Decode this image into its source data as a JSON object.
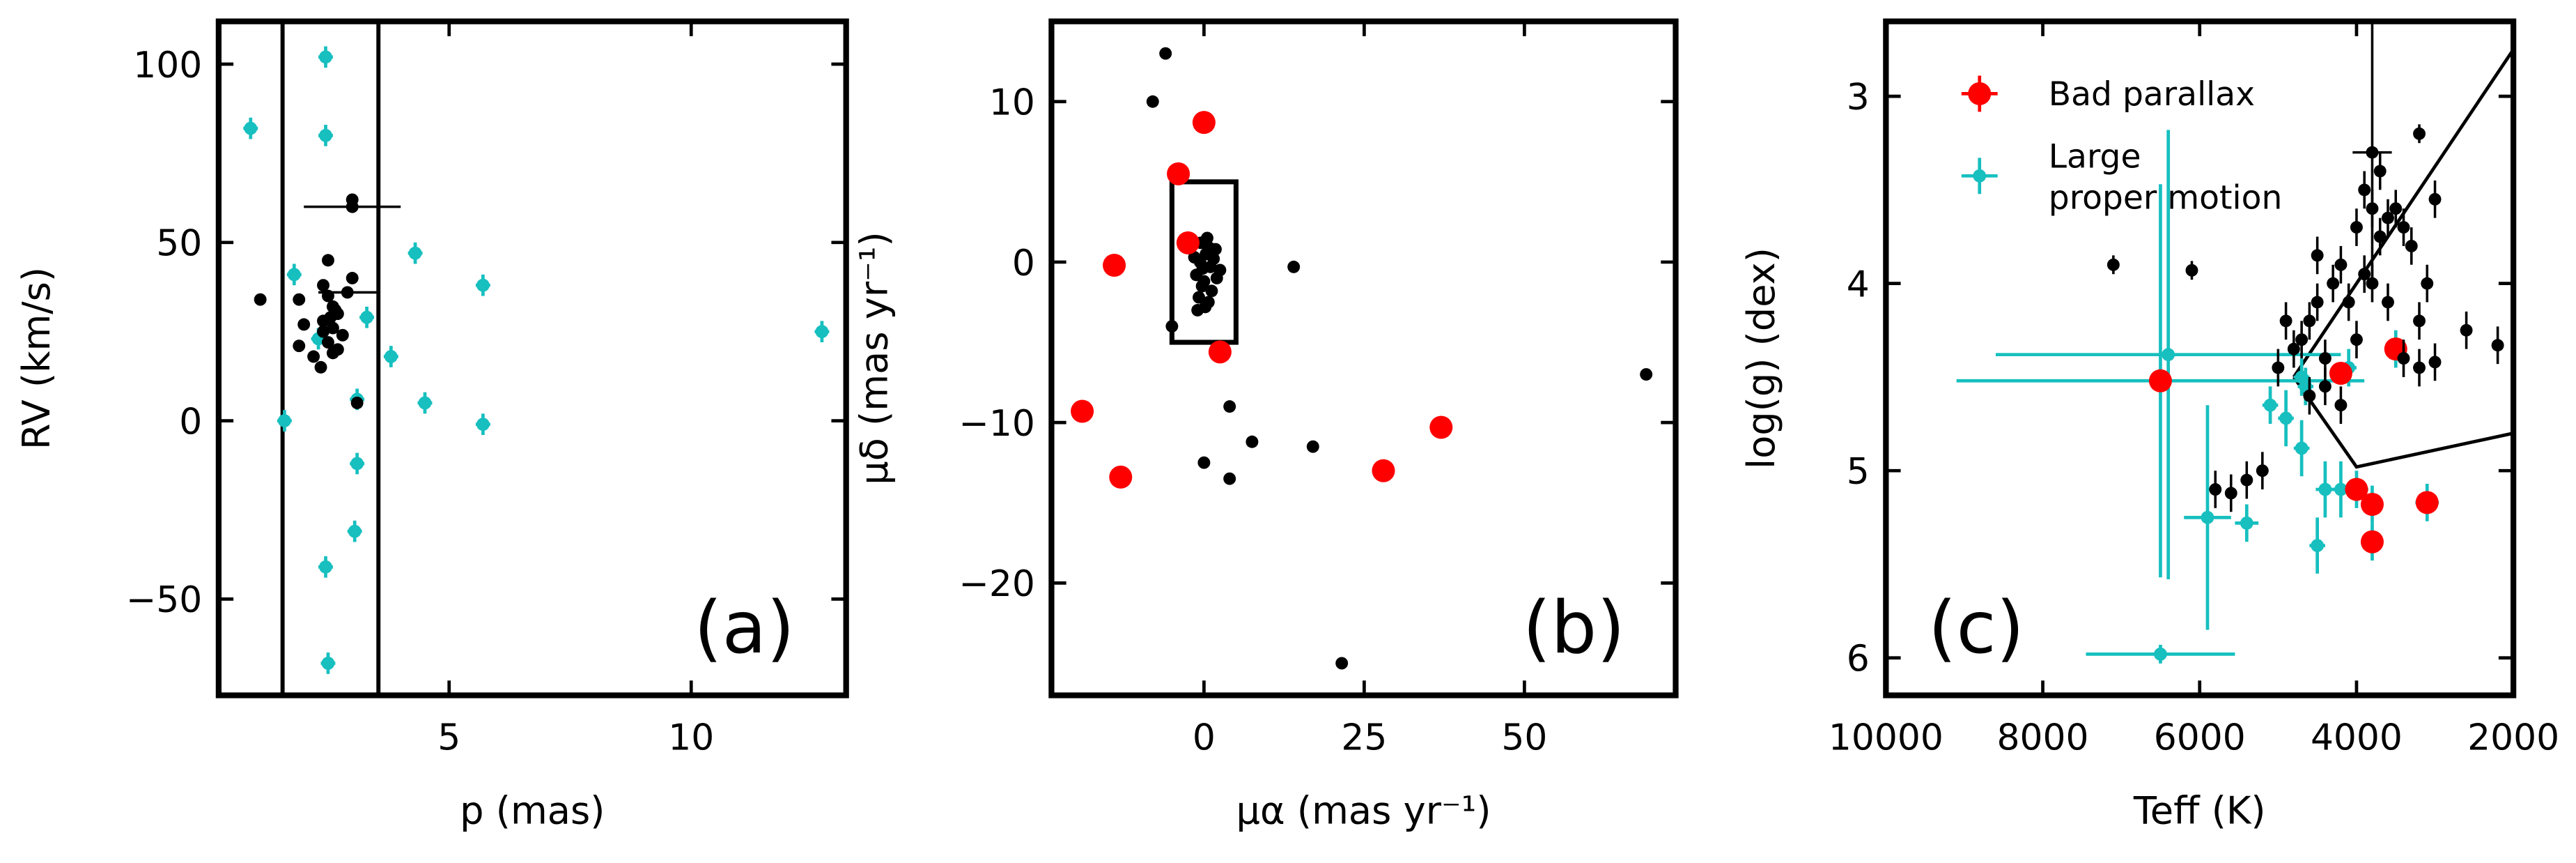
{
  "chart_data": [
    {
      "type": "scatter",
      "xlabel": "p (mas)",
      "ylabel": "RV (km/s)",
      "panel_label": "(a)",
      "xlim": [
        0.24,
        13.2
      ],
      "ylim": [
        -77,
        112
      ],
      "xticks": [
        5,
        10
      ],
      "yticks": [
        {
          "value": -50,
          "label": "−50"
        },
        0,
        50,
        100
      ],
      "vlines": [
        1.56,
        3.54
      ],
      "series": [
        {
          "color": "#17bfbf",
          "marker": "cross",
          "x": [
            0.9,
            2.45,
            2.45,
            1.8,
            1.6,
            2.3,
            3.3,
            3.1,
            3.1,
            3.05,
            2.45,
            2.5,
            3.8,
            4.3,
            4.5,
            5.7,
            5.7,
            12.7
          ],
          "y": [
            82,
            102,
            80,
            41,
            0,
            23,
            29,
            6,
            -12,
            -31,
            -41,
            -68,
            18,
            47,
            5,
            38,
            -1,
            25
          ],
          "xerr": [
            0.15,
            0.15,
            0.15,
            0.15,
            0.15,
            0.15,
            0.15,
            0.15,
            0.15,
            0.15,
            0.15,
            0.15,
            0.15,
            0.15,
            0.15,
            0.15,
            0.15,
            0.15
          ],
          "yerr": [
            3,
            3,
            3,
            3,
            3,
            3,
            3,
            3,
            3,
            3,
            3,
            3,
            3,
            3,
            3,
            3,
            3,
            3
          ]
        },
        {
          "color": "#000000",
          "marker": "dot",
          "x": [
            1.1,
            3.0,
            3.0,
            3.1,
            1.9,
            2.0,
            1.9,
            2.2,
            2.5,
            2.4,
            2.5,
            2.6,
            2.7,
            2.4,
            2.6,
            2.8,
            2.5,
            2.7,
            2.6,
            2.4,
            2.9,
            2.55,
            2.65,
            2.35,
            3.0
          ],
          "y": [
            34,
            62,
            60,
            5,
            34,
            27,
            21,
            18,
            45,
            38,
            35,
            32,
            30,
            28,
            26,
            24,
            22,
            20,
            19,
            25,
            36,
            29,
            31,
            15,
            40
          ],
          "xerr": [
            null,
            null,
            1.0,
            null,
            null,
            null,
            null,
            null,
            null,
            null,
            null,
            null,
            null,
            null,
            null,
            null,
            null,
            null,
            null,
            null,
            0.6,
            null,
            null,
            null,
            null
          ]
        }
      ]
    },
    {
      "type": "scatter",
      "xlabel": "μα (mas yr⁻¹)",
      "ylabel": "μδ (mas yr⁻¹)",
      "panel_label": "(b)",
      "xlim": [
        -23.8,
        73.6
      ],
      "ylim": [
        -27,
        15
      ],
      "xticks": [
        0,
        25,
        50
      ],
      "yticks": [
        {
          "value": -20,
          "label": "−20"
        },
        {
          "value": -10,
          "label": "−10"
        },
        0,
        10
      ],
      "box": {
        "x": [
          -5,
          5
        ],
        "y": [
          -5,
          5
        ]
      },
      "series": [
        {
          "color": "#000000",
          "marker": "dot",
          "x": [
            -0.5,
            0.3,
            1.0,
            -1.2,
            0.8,
            -0.3,
            1.5,
            -0.8,
            0.2,
            2.0,
            -1.5,
            0.5,
            1.2,
            -0.2,
            0.7,
            -1.0,
            1.8,
            0.0,
            -0.6,
            2.5,
            -6,
            -8,
            14,
            4,
            7.5,
            17,
            0,
            4,
            69,
            21.5,
            -5
          ],
          "y": [
            1.2,
            0.5,
            -0.3,
            -0.8,
            0.9,
            -1.5,
            0.2,
            -2.2,
            -2.8,
            -1.0,
            0.3,
            1.5,
            -1.8,
            -0.4,
            -2.5,
            -3.0,
            0.8,
            -1.2,
            0.0,
            -0.5,
            13,
            10,
            -0.3,
            -9,
            -11.2,
            -11.5,
            -12.5,
            -13.5,
            -7,
            -25,
            -4
          ]
        },
        {
          "color": "#ff0000",
          "marker": "big",
          "x": [
            -4,
            0,
            -2.5,
            -14,
            -19,
            -13,
            2.5,
            28,
            37
          ],
          "y": [
            5.5,
            8.7,
            1.2,
            -0.2,
            -9.3,
            -13.4,
            -5.6,
            -13,
            -10.3
          ]
        }
      ]
    },
    {
      "type": "scatter",
      "xlabel": "Teff (K)",
      "ylabel": "log(g) (dex)",
      "panel_label": "(c)",
      "xlim": [
        10000,
        2000
      ],
      "ylim": [
        6.2,
        2.6
      ],
      "xticks": [
        10000,
        8000,
        6000,
        4000,
        2000
      ],
      "yticks": [
        3,
        4,
        5,
        6
      ],
      "legend": "upper left",
      "lines": [
        {
          "x": [
            4800,
            2000
          ],
          "y": [
            4.5,
            2.75
          ]
        },
        {
          "x": [
            4800,
            4000,
            2000
          ],
          "y": [
            4.5,
            4.98,
            4.8
          ]
        }
      ],
      "series": [
        {
          "name": [
            "Large",
            "proper motion"
          ],
          "color": "#17bfbf",
          "marker": "cross",
          "x": [
            6500,
            6400,
            6500,
            5900,
            5400,
            5100,
            4900,
            4700,
            4650,
            4500,
            4400,
            4200,
            4700,
            4100,
            3500,
            3100,
            3800,
            3800,
            4000
          ],
          "y": [
            4.52,
            4.38,
            5.98,
            5.25,
            5.28,
            4.65,
            4.72,
            4.88,
            4.55,
            5.4,
            5.1,
            5.1,
            4.5,
            4.45,
            4.35,
            5.17,
            5.18,
            5.38,
            5.1
          ],
          "xerr": [
            2600,
            2200,
            950,
            300,
            150,
            100,
            100,
            100,
            100,
            100,
            120,
            150,
            100,
            100,
            120,
            150,
            120,
            120,
            150
          ],
          "yerr": [
            1.05,
            1.2,
            0.05,
            0.6,
            0.1,
            0.1,
            0.15,
            0.15,
            0.1,
            0.15,
            0.15,
            0.15,
            0.1,
            0.1,
            0.1,
            0.1,
            0.1,
            0.1,
            0.1
          ]
        },
        {
          "name": [
            "Bad parallax"
          ],
          "color": "#ff0000",
          "marker": "big",
          "x": [
            6500,
            4200,
            4000,
            3800,
            3800,
            3500,
            3100
          ],
          "y": [
            4.52,
            4.48,
            5.1,
            5.18,
            5.38,
            4.35,
            5.17
          ]
        },
        {
          "color": "#000000",
          "marker": "dot",
          "x": [
            7100,
            6100,
            3800,
            3200,
            5800,
            5600,
            5400,
            5200,
            5000,
            4800,
            4600,
            4700,
            4500,
            4400,
            4300,
            4200,
            4100,
            4000,
            3900,
            3800,
            3700,
            3600,
            3500,
            3400,
            3300,
            3200,
            3100,
            3000,
            4600,
            4400,
            4200,
            4000,
            3800,
            3600,
            3400,
            3200,
            3000,
            2200,
            2600,
            4900,
            4500,
            3700,
            3900
          ],
          "y": [
            3.9,
            3.93,
            3.3,
            3.2,
            5.1,
            5.12,
            5.05,
            5.0,
            4.45,
            4.35,
            4.2,
            4.3,
            4.1,
            4.4,
            4.0,
            3.9,
            4.1,
            3.7,
            3.5,
            3.6,
            3.4,
            3.65,
            3.6,
            3.7,
            3.8,
            4.2,
            4.0,
            3.55,
            4.6,
            4.55,
            4.65,
            4.3,
            4.0,
            4.1,
            4.4,
            4.45,
            4.42,
            4.33,
            4.25,
            4.2,
            3.85,
            3.75,
            3.95
          ],
          "xerr": [
            60,
            60,
            250,
            60,
            60,
            60,
            60,
            60,
            60,
            60,
            60,
            60,
            60,
            60,
            60,
            60,
            60,
            60,
            60,
            60,
            60,
            60,
            60,
            60,
            60,
            60,
            60,
            60,
            60,
            60,
            60,
            60,
            60,
            60,
            60,
            60,
            60,
            60,
            60,
            60,
            60,
            60,
            60
          ],
          "yerr": [
            0.05,
            0.05,
            0.7,
            0.05,
            0.1,
            0.1,
            0.1,
            0.1,
            0.1,
            0.1,
            0.1,
            0.1,
            0.1,
            0.1,
            0.1,
            0.1,
            0.1,
            0.1,
            0.1,
            0.1,
            0.1,
            0.1,
            0.1,
            0.1,
            0.1,
            0.1,
            0.1,
            0.1,
            0.1,
            0.1,
            0.1,
            0.1,
            0.1,
            0.1,
            0.1,
            0.1,
            0.1,
            0.1,
            0.1,
            0.1,
            0.1,
            0.1,
            0.1
          ]
        }
      ]
    }
  ]
}
